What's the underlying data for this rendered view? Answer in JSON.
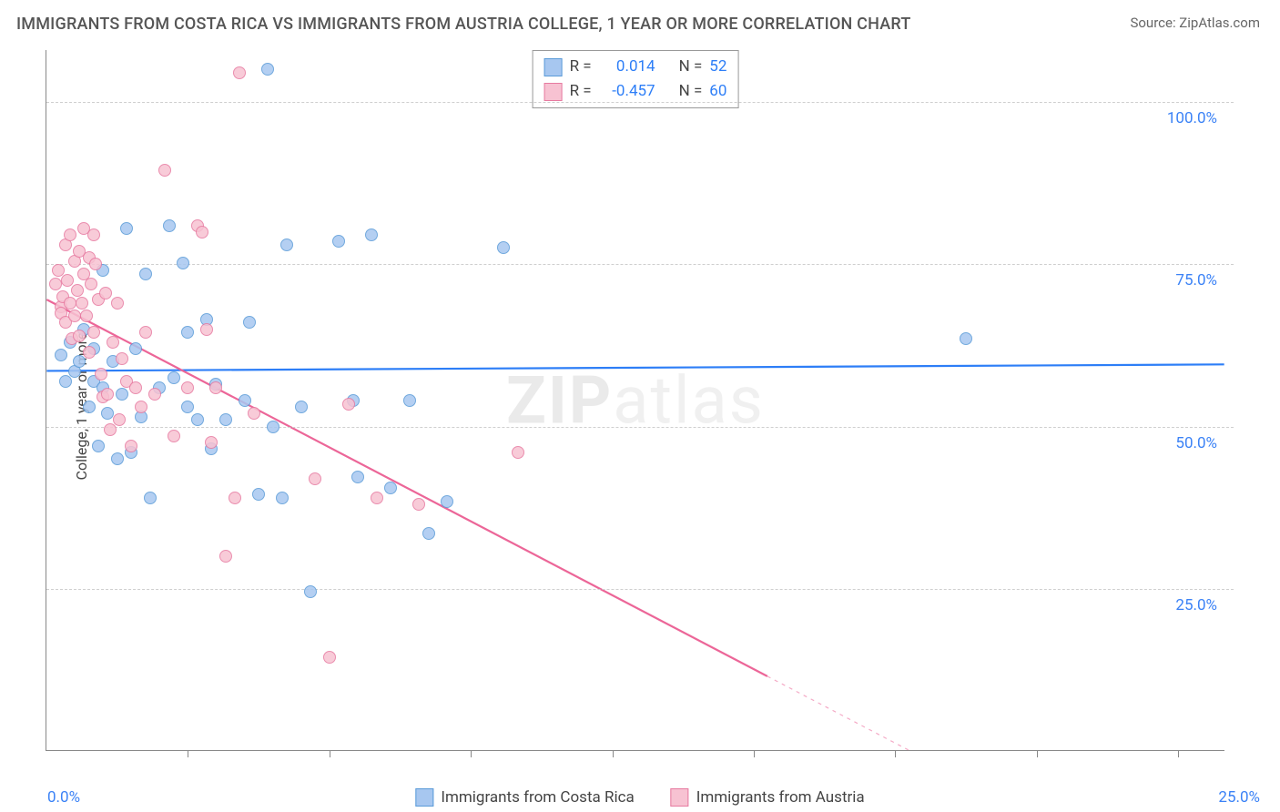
{
  "title": "IMMIGRANTS FROM COSTA RICA VS IMMIGRANTS FROM AUSTRIA COLLEGE, 1 YEAR OR MORE CORRELATION CHART",
  "source": "Source: ZipAtlas.com",
  "yaxis_label": "College, 1 year or more",
  "watermark_a": "ZIP",
  "watermark_b": "atlas",
  "chart": {
    "type": "scatter",
    "xlim": [
      0,
      25
    ],
    "ylim": [
      0,
      108
    ],
    "background_color": "#ffffff",
    "grid_color": "#cfcfcf",
    "axis_color": "#888888",
    "tick_label_color": "#3b82f6",
    "yticks": [
      25,
      50,
      75,
      100
    ],
    "ytick_labels": [
      "25.0%",
      "50.0%",
      "75.0%",
      "100.0%"
    ],
    "xticks": [
      0,
      3,
      6,
      9,
      12,
      15,
      18,
      21,
      24
    ],
    "x_origin_label": "0.0%",
    "x_end_label": "25.0%",
    "marker_radius": 7,
    "marker_border_width": 1.5,
    "marker_fill_opacity": 0.35,
    "series": [
      {
        "label": "Immigrants from Costa Rica",
        "marker_fill": "#a7c7f0",
        "marker_stroke": "#5a9bd8",
        "line_color": "#2d7ef7",
        "line_width": 2.2,
        "r_value": "0.014",
        "n_value": "52",
        "trend": {
          "x1": 0,
          "y1": 58.5,
          "x2": 25,
          "y2": 59.5,
          "dashed": false
        },
        "points": [
          [
            0.3,
            61
          ],
          [
            0.4,
            57
          ],
          [
            0.5,
            63
          ],
          [
            0.6,
            58.5
          ],
          [
            0.7,
            60
          ],
          [
            0.8,
            65
          ],
          [
            0.9,
            53
          ],
          [
            1.0,
            57
          ],
          [
            1.0,
            62
          ],
          [
            1.1,
            47
          ],
          [
            1.2,
            56
          ],
          [
            1.2,
            74
          ],
          [
            1.3,
            52
          ],
          [
            1.4,
            60
          ],
          [
            1.5,
            45
          ],
          [
            1.6,
            55
          ],
          [
            1.7,
            80.5
          ],
          [
            1.8,
            46
          ],
          [
            1.9,
            62
          ],
          [
            2.0,
            51.5
          ],
          [
            2.1,
            73.5
          ],
          [
            2.2,
            39
          ],
          [
            2.4,
            56
          ],
          [
            2.6,
            81
          ],
          [
            2.7,
            57.5
          ],
          [
            2.9,
            75.2
          ],
          [
            3.0,
            53
          ],
          [
            3.0,
            64.5
          ],
          [
            3.2,
            51
          ],
          [
            3.4,
            66.5
          ],
          [
            3.5,
            46.5
          ],
          [
            3.6,
            56.5
          ],
          [
            3.8,
            51
          ],
          [
            4.2,
            54
          ],
          [
            4.3,
            66
          ],
          [
            4.5,
            39.5
          ],
          [
            4.7,
            105
          ],
          [
            4.8,
            50
          ],
          [
            5.0,
            39
          ],
          [
            5.1,
            78
          ],
          [
            5.4,
            53
          ],
          [
            5.6,
            24.5
          ],
          [
            6.2,
            78.5
          ],
          [
            6.5,
            54
          ],
          [
            6.6,
            42.2
          ],
          [
            6.9,
            79.5
          ],
          [
            7.3,
            40.5
          ],
          [
            7.7,
            54
          ],
          [
            8.1,
            33.5
          ],
          [
            8.5,
            38.5
          ],
          [
            9.7,
            77.5
          ],
          [
            19.5,
            63.5
          ]
        ]
      },
      {
        "label": "Immigrants from Austria",
        "marker_fill": "#f7c2d2",
        "marker_stroke": "#e77aa0",
        "line_color": "#ec6698",
        "line_width": 2.2,
        "r_value": "-0.457",
        "n_value": "60",
        "trend": {
          "x1": 0,
          "y1": 69.5,
          "x2": 18.3,
          "y2": 0,
          "dashed_from_x": 15.3
        },
        "points": [
          [
            0.2,
            72
          ],
          [
            0.25,
            74
          ],
          [
            0.3,
            68.5
          ],
          [
            0.3,
            67.5
          ],
          [
            0.35,
            70
          ],
          [
            0.4,
            66
          ],
          [
            0.4,
            78
          ],
          [
            0.45,
            72.5
          ],
          [
            0.5,
            69
          ],
          [
            0.5,
            79.5
          ],
          [
            0.55,
            63.5
          ],
          [
            0.6,
            67
          ],
          [
            0.6,
            75.5
          ],
          [
            0.65,
            71
          ],
          [
            0.7,
            64
          ],
          [
            0.7,
            77
          ],
          [
            0.75,
            69
          ],
          [
            0.8,
            73.5
          ],
          [
            0.8,
            80.5
          ],
          [
            0.85,
            67
          ],
          [
            0.9,
            61.5
          ],
          [
            0.9,
            76
          ],
          [
            0.95,
            72
          ],
          [
            1.0,
            64.5
          ],
          [
            1.0,
            79.5
          ],
          [
            1.05,
            75
          ],
          [
            1.1,
            69.5
          ],
          [
            1.15,
            58
          ],
          [
            1.2,
            54.5
          ],
          [
            1.25,
            70.5
          ],
          [
            1.3,
            55
          ],
          [
            1.35,
            49.5
          ],
          [
            1.4,
            63
          ],
          [
            1.5,
            69
          ],
          [
            1.55,
            51
          ],
          [
            1.6,
            60.5
          ],
          [
            1.7,
            57
          ],
          [
            1.8,
            47
          ],
          [
            1.9,
            56
          ],
          [
            2.0,
            53
          ],
          [
            2.1,
            64.5
          ],
          [
            2.3,
            55
          ],
          [
            2.5,
            89.5
          ],
          [
            2.7,
            48.5
          ],
          [
            3.0,
            56
          ],
          [
            3.2,
            81
          ],
          [
            3.3,
            80
          ],
          [
            3.4,
            65
          ],
          [
            3.5,
            47.5
          ],
          [
            3.6,
            56
          ],
          [
            3.8,
            30
          ],
          [
            4.0,
            39
          ],
          [
            4.1,
            104.5
          ],
          [
            4.4,
            52
          ],
          [
            5.7,
            42
          ],
          [
            6.0,
            14.5
          ],
          [
            6.4,
            53.5
          ],
          [
            7.0,
            39.0
          ],
          [
            7.9,
            38
          ],
          [
            10.0,
            46
          ]
        ]
      }
    ]
  },
  "legend_top": {
    "rows": [
      {
        "swatch_fill": "#a7c7f0",
        "swatch_stroke": "#5a9bd8",
        "r_label": "R =",
        "r_val": "0.014",
        "n_label": "N =",
        "n_val": "52"
      },
      {
        "swatch_fill": "#f7c2d2",
        "swatch_stroke": "#e77aa0",
        "r_label": "R =",
        "r_val": "-0.457",
        "n_label": "N =",
        "n_val": "60"
      }
    ]
  },
  "legend_bottom": [
    {
      "swatch_fill": "#a7c7f0",
      "swatch_stroke": "#5a9bd8",
      "label": "Immigrants from Costa Rica"
    },
    {
      "swatch_fill": "#f7c2d2",
      "swatch_stroke": "#e77aa0",
      "label": "Immigrants from Austria"
    }
  ]
}
